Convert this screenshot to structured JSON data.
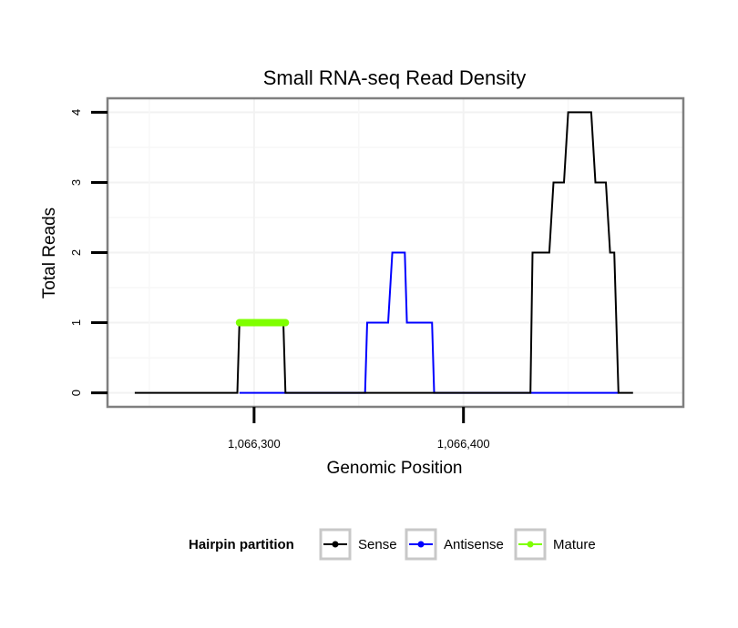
{
  "chart_data": {
    "type": "line",
    "title": "Small RNA-seq Read Density",
    "xlabel": "Genomic Position",
    "ylabel": "Total Reads",
    "xlim": [
      1066230,
      1066505
    ],
    "ylim": [
      -0.2,
      4.2
    ],
    "x_ticks": [
      1066300,
      1066400
    ],
    "x_tick_labels": [
      "1,066,300",
      "1,066,400"
    ],
    "y_ticks": [
      0,
      1,
      2,
      3,
      4
    ],
    "y_tick_labels": [
      "0",
      "1",
      "2",
      "3",
      "4"
    ],
    "grid": true,
    "legend": {
      "title": "Hairpin partition",
      "position": "bottom",
      "entries": [
        {
          "name": "Sense",
          "color": "#000000"
        },
        {
          "name": "Antisense",
          "color": "#0000ff"
        },
        {
          "name": "Mature",
          "color": "#7fff00"
        }
      ]
    },
    "series": [
      {
        "name": "Sense",
        "color": "#000000",
        "points": [
          [
            1066243,
            0
          ],
          [
            1066292,
            0
          ],
          [
            1066293,
            1
          ],
          [
            1066314,
            1
          ],
          [
            1066315,
            0
          ],
          [
            1066398,
            0
          ],
          [
            1066420,
            0
          ],
          [
            1066432,
            0
          ],
          [
            1066433,
            2
          ],
          [
            1066441,
            2
          ],
          [
            1066443,
            3
          ],
          [
            1066448,
            3
          ],
          [
            1066450,
            4
          ],
          [
            1066461,
            4
          ],
          [
            1066463,
            3
          ],
          [
            1066468,
            3
          ],
          [
            1066470,
            2
          ],
          [
            1066472,
            2
          ],
          [
            1066474,
            0
          ],
          [
            1066481,
            0
          ]
        ]
      },
      {
        "name": "Antisense",
        "color": "#0000ff",
        "points": [
          [
            1066293,
            0
          ],
          [
            1066314,
            0
          ],
          [
            1066315,
            0
          ],
          [
            1066353,
            0
          ],
          [
            1066354,
            1
          ],
          [
            1066364,
            1
          ],
          [
            1066366,
            2
          ],
          [
            1066372,
            2
          ],
          [
            1066373,
            1
          ],
          [
            1066385,
            1
          ],
          [
            1066386,
            0
          ],
          [
            1066432,
            0
          ],
          [
            1066474,
            0
          ]
        ]
      },
      {
        "name": "Mature",
        "color": "#7fff00",
        "points": [
          [
            1066293,
            1
          ],
          [
            1066315,
            1
          ]
        ]
      }
    ]
  }
}
